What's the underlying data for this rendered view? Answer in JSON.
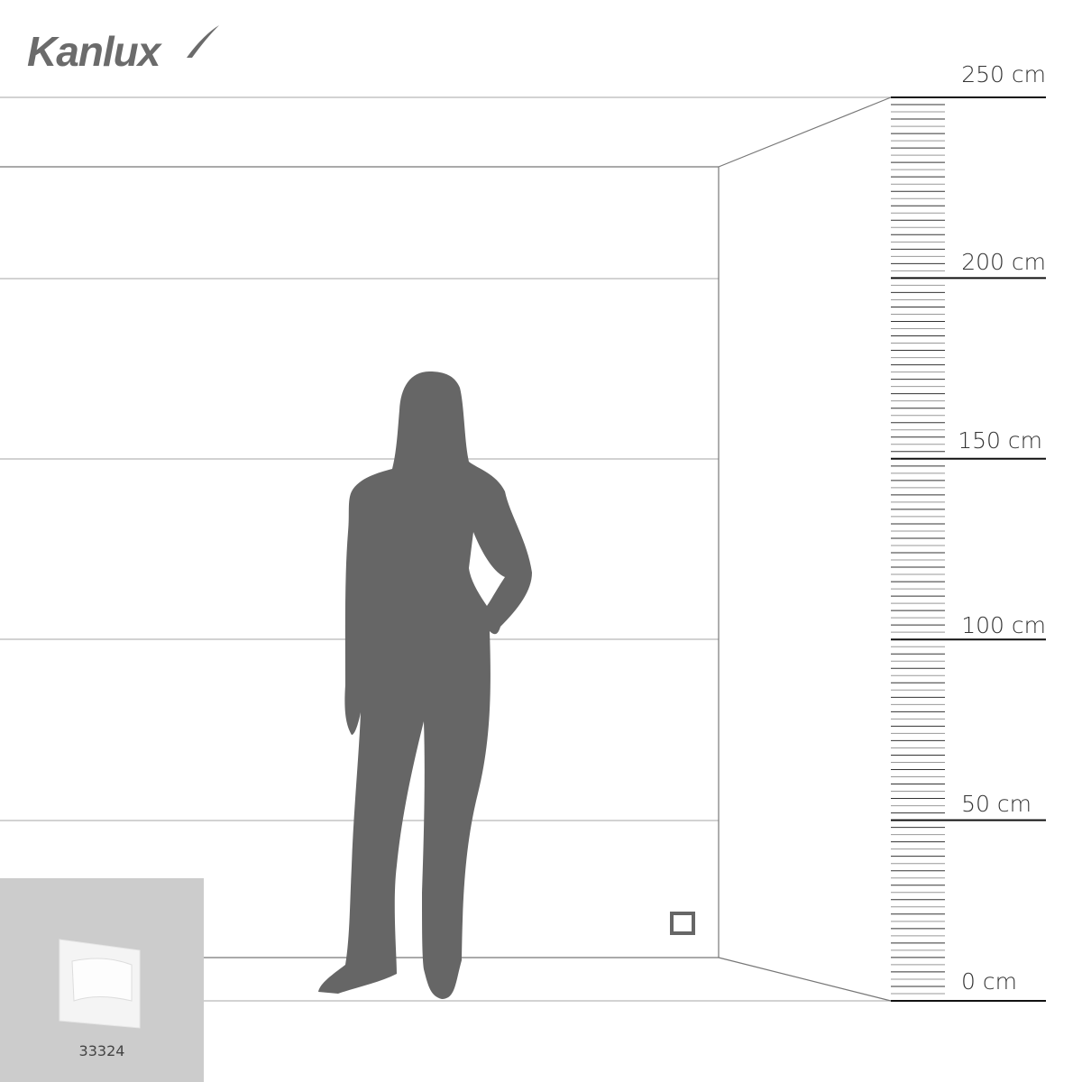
{
  "brand": {
    "logo_text": "Kanlux",
    "color": "#6b6b6b"
  },
  "scale": {
    "unit": "cm",
    "labels": [
      "250 cm",
      "200 cm",
      "150 cm",
      "100 cm",
      "50 cm",
      "0 cm"
    ],
    "values": [
      250,
      200,
      150,
      100,
      50,
      0
    ],
    "minor_tick_step_cm": 2
  },
  "product": {
    "code": "33324",
    "panel_color": "#cccccc"
  },
  "figure": {
    "type": "woman-silhouette",
    "color": "#666666"
  },
  "mounted_fixture": {
    "icon": "square-step-light-icon",
    "height_cm": 20
  }
}
